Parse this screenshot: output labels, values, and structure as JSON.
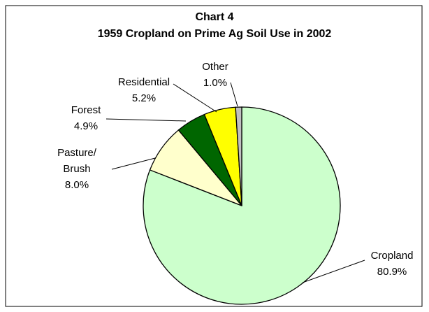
{
  "chart_data": {
    "type": "pie",
    "title": "Chart 4",
    "subtitle": "1959 Cropland on Prime Ag Soil Use in 2002",
    "categories": [
      "Cropland",
      "Pasture/\nBrush",
      "Forest",
      "Residential",
      "Other"
    ],
    "values": [
      80.9,
      8.0,
      4.9,
      5.2,
      1.0
    ],
    "value_labels": [
      "80.9%",
      "8.0%",
      "4.9%",
      "5.2%",
      "1.0%"
    ],
    "colors": [
      "#ccffcc",
      "#ffffcc",
      "#006600",
      "#ffff00",
      "#c0c0c0"
    ]
  }
}
